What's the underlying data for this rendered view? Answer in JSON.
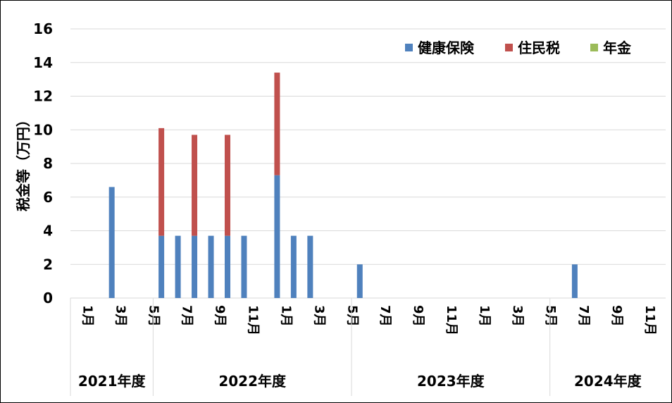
{
  "chart_data": {
    "type": "bar",
    "stacked": true,
    "ylabel": "税金等（万円）",
    "ylim": [
      0,
      16
    ],
    "yticks": [
      0,
      2,
      4,
      6,
      8,
      10,
      12,
      14,
      16
    ],
    "grid": true,
    "legend_position": "top-right",
    "colors": {
      "健康保険": "#4F81BD",
      "住民税": "#C0504D",
      "年金": "#9BBB59"
    },
    "categories": [
      "1月",
      "2月",
      "3月",
      "4月",
      "5月",
      "6月",
      "7月",
      "8月",
      "9月",
      "10月",
      "11月",
      "12月",
      "1月",
      "2月",
      "3月",
      "4月",
      "5月",
      "6月",
      "7月",
      "8月",
      "9月",
      "10月",
      "11月",
      "12月",
      "1月",
      "2月",
      "3月",
      "4月",
      "5月",
      "6月",
      "7月",
      "8月",
      "9月",
      "10月",
      "11月",
      "12月"
    ],
    "tick_labels": [
      "1月",
      "",
      "3月",
      "",
      "5月",
      "",
      "7月",
      "",
      "9月",
      "",
      "11月",
      "",
      "1月",
      "",
      "3月",
      "",
      "5月",
      "",
      "7月",
      "",
      "9月",
      "",
      "11月",
      "",
      "1月",
      "",
      "3月",
      "",
      "5月",
      "",
      "7月",
      "",
      "9月",
      "",
      "11月",
      ""
    ],
    "groups": [
      {
        "label": "2021年度",
        "span": 5
      },
      {
        "label": "2022年度",
        "span": 12
      },
      {
        "label": "2023年度",
        "span": 12
      },
      {
        "label": "2024年度",
        "span": 7
      }
    ],
    "series": [
      {
        "name": "健康保険",
        "values": [
          0,
          0,
          6.6,
          0,
          0,
          3.7,
          3.7,
          3.7,
          3.7,
          3.7,
          3.7,
          0,
          7.3,
          3.7,
          3.7,
          0,
          0,
          2,
          0,
          0,
          0,
          0,
          0,
          0,
          0,
          0,
          0,
          0,
          0,
          0,
          2,
          0,
          0,
          0,
          0,
          0
        ]
      },
      {
        "name": "住民税",
        "values": [
          0,
          0,
          0,
          0,
          0,
          6.4,
          0,
          6,
          0,
          6,
          0,
          0,
          6.1,
          0,
          0,
          0,
          0,
          0,
          0,
          0,
          0,
          0,
          0,
          0,
          0,
          0,
          0,
          0,
          0,
          0,
          0,
          0,
          0,
          0,
          0,
          0
        ]
      },
      {
        "name": "年金",
        "values": [
          0,
          0,
          0,
          0,
          0,
          0,
          0,
          0,
          0,
          0,
          0,
          0,
          0,
          0,
          0,
          0,
          0,
          0,
          0,
          0,
          0,
          0,
          0,
          0,
          0,
          0,
          0,
          0,
          0,
          0,
          0,
          0,
          0,
          0,
          0,
          0
        ]
      }
    ]
  }
}
